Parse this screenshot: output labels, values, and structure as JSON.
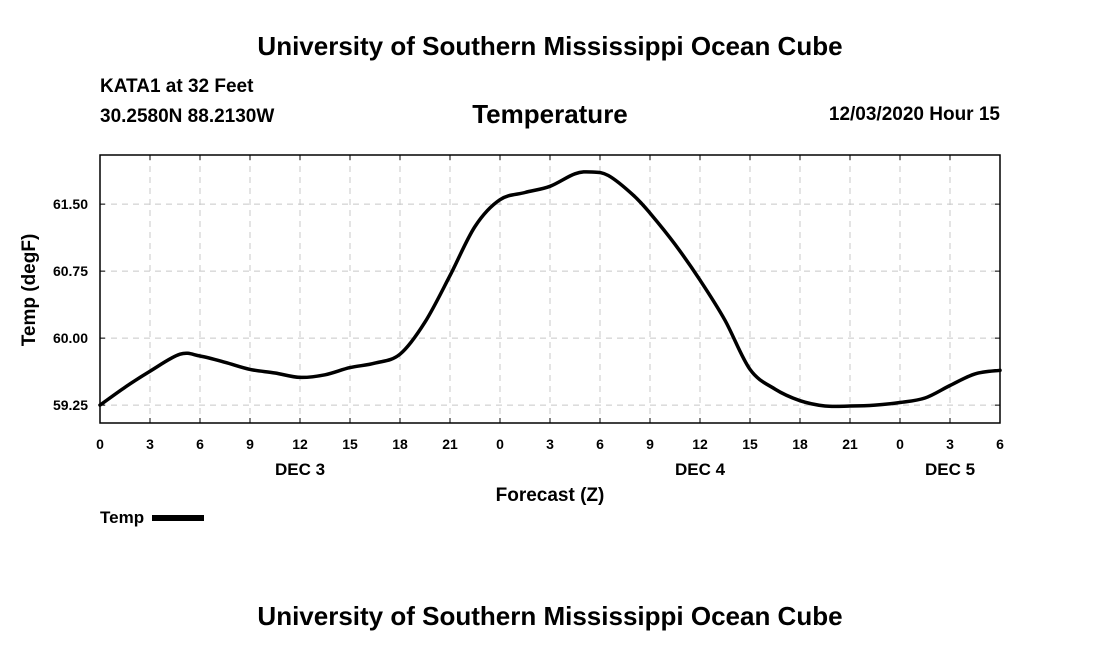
{
  "header": {
    "title": "University of Southern Mississippi Ocean Cube",
    "station": "KATA1 at 32 Feet",
    "location": "30.2580N 88.2130W",
    "chart_title": "Temperature",
    "datetime": "12/03/2020 Hour 15"
  },
  "legend": {
    "label": "Temp"
  },
  "footer": {
    "title": "University of Southern Mississippi Ocean Cube"
  },
  "colors": {
    "line": "#000000",
    "grid": "#c8c8c8",
    "background": "#ffffff"
  },
  "chart_data": {
    "type": "line",
    "title": "Temperature",
    "xlabel": "Forecast (Z)",
    "ylabel": "Temp (degF)",
    "ylim": [
      59.05,
      62.05
    ],
    "xlim": [
      0,
      54
    ],
    "yticks": [
      59.25,
      60.0,
      60.75,
      61.5
    ],
    "ytick_labels": [
      "59.25",
      "60.00",
      "60.75",
      "61.50"
    ],
    "xticks": [
      0,
      3,
      6,
      9,
      12,
      15,
      18,
      21,
      24,
      27,
      30,
      33,
      36,
      39,
      42,
      45,
      48,
      51,
      54
    ],
    "xtick_labels": [
      "0",
      "3",
      "6",
      "9",
      "12",
      "15",
      "18",
      "21",
      "0",
      "3",
      "6",
      "9",
      "12",
      "15",
      "18",
      "21",
      "0",
      "3",
      "6"
    ],
    "date_labels": [
      {
        "x": 12,
        "label": "DEC 3"
      },
      {
        "x": 36,
        "label": "DEC 4"
      },
      {
        "x": 51,
        "label": "DEC 5"
      }
    ],
    "grid": true,
    "series": [
      {
        "name": "Temp",
        "x": [
          0,
          1.5,
          3,
          4.8,
          6,
          7.5,
          9,
          10.5,
          12,
          13.5,
          15,
          16.5,
          18,
          19.5,
          21,
          22.5,
          24,
          25.5,
          27,
          28.5,
          29.5,
          30.5,
          32,
          33,
          34.5,
          36,
          37.5,
          39,
          40.5,
          42,
          43.5,
          45,
          46.5,
          48,
          49.5,
          51,
          52.5,
          54
        ],
        "values": [
          59.25,
          59.45,
          59.63,
          59.82,
          59.8,
          59.73,
          59.65,
          59.61,
          59.56,
          59.59,
          59.67,
          59.72,
          59.82,
          60.18,
          60.7,
          61.25,
          61.55,
          61.63,
          61.7,
          61.84,
          61.86,
          61.82,
          61.6,
          61.4,
          61.05,
          60.65,
          60.2,
          59.65,
          59.43,
          59.3,
          59.24,
          59.24,
          59.25,
          59.28,
          59.33,
          59.47,
          59.6,
          59.64
        ]
      }
    ]
  }
}
